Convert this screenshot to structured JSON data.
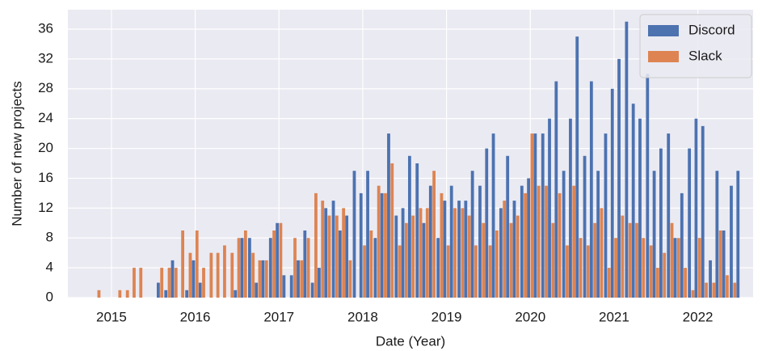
{
  "chart_data": {
    "type": "bar",
    "xlabel": "Date (Year)",
    "ylabel": "Number of new projects",
    "x": [
      2014.83,
      2014.92,
      2015.0,
      2015.08,
      2015.17,
      2015.25,
      2015.33,
      2015.42,
      2015.5,
      2015.58,
      2015.67,
      2015.75,
      2015.83,
      2015.92,
      2016.0,
      2016.08,
      2016.17,
      2016.25,
      2016.33,
      2016.42,
      2016.5,
      2016.58,
      2016.67,
      2016.75,
      2016.83,
      2016.92,
      2017.0,
      2017.08,
      2017.17,
      2017.25,
      2017.33,
      2017.42,
      2017.5,
      2017.58,
      2017.67,
      2017.75,
      2017.83,
      2017.92,
      2018.0,
      2018.08,
      2018.17,
      2018.25,
      2018.33,
      2018.42,
      2018.5,
      2018.58,
      2018.67,
      2018.75,
      2018.83,
      2018.92,
      2019.0,
      2019.08,
      2019.17,
      2019.25,
      2019.33,
      2019.42,
      2019.5,
      2019.58,
      2019.67,
      2019.75,
      2019.83,
      2019.92,
      2020.0,
      2020.08,
      2020.17,
      2020.25,
      2020.33,
      2020.42,
      2020.5,
      2020.58,
      2020.67,
      2020.75,
      2020.83,
      2020.92,
      2021.0,
      2021.08,
      2021.17,
      2021.25,
      2021.33,
      2021.42,
      2021.5,
      2021.58,
      2021.67,
      2021.75,
      2021.83,
      2021.92,
      2022.0,
      2022.08,
      2022.17,
      2022.25,
      2022.33,
      2022.42,
      2022.5
    ],
    "series": [
      {
        "name": "Discord",
        "color": "#4c72b0",
        "values": [
          0,
          0,
          0,
          0,
          0,
          0,
          0,
          0,
          0,
          2,
          1,
          5,
          0,
          1,
          5,
          2,
          0,
          0,
          0,
          0,
          1,
          8,
          8,
          2,
          5,
          8,
          10,
          3,
          3,
          5,
          9,
          2,
          4,
          12,
          13,
          9,
          11,
          17,
          14,
          17,
          8,
          14,
          22,
          11,
          12,
          19,
          18,
          10,
          15,
          8,
          13,
          15,
          13,
          13,
          17,
          15,
          20,
          22,
          12,
          19,
          13,
          15,
          16,
          22,
          22,
          24,
          29,
          17,
          24,
          35,
          19,
          29,
          17,
          22,
          28,
          32,
          37,
          26,
          24,
          30,
          17,
          20,
          22,
          8,
          14,
          20,
          24,
          23,
          5,
          17,
          9,
          15,
          17
        ]
      },
      {
        "name": "Slack",
        "color": "#dd8452",
        "values": [
          1,
          0,
          0,
          1,
          1,
          4,
          4,
          0,
          0,
          4,
          4,
          4,
          9,
          6,
          9,
          4,
          6,
          6,
          7,
          6,
          8,
          9,
          6,
          5,
          5,
          9,
          10,
          0,
          8,
          5,
          8,
          14,
          13,
          11,
          11,
          12,
          5,
          0,
          7,
          9,
          15,
          14,
          18,
          7,
          10,
          11,
          12,
          12,
          17,
          14,
          7,
          12,
          12,
          11,
          7,
          10,
          7,
          9,
          13,
          10,
          11,
          14,
          22,
          15,
          15,
          10,
          14,
          7,
          15,
          8,
          7,
          10,
          12,
          4,
          8,
          11,
          10,
          10,
          8,
          7,
          4,
          6,
          10,
          8,
          4,
          1,
          8,
          2,
          2,
          9,
          3,
          2,
          0
        ]
      }
    ],
    "xlim": [
      2014.48,
      2022.66
    ],
    "xticks": [
      2015,
      2016,
      2017,
      2018,
      2019,
      2020,
      2021,
      2022
    ],
    "ylim": [
      0,
      38.6
    ],
    "yticks": [
      0,
      4,
      8,
      12,
      16,
      20,
      24,
      28,
      32,
      36
    ],
    "grid": true,
    "legend": "upper right"
  }
}
